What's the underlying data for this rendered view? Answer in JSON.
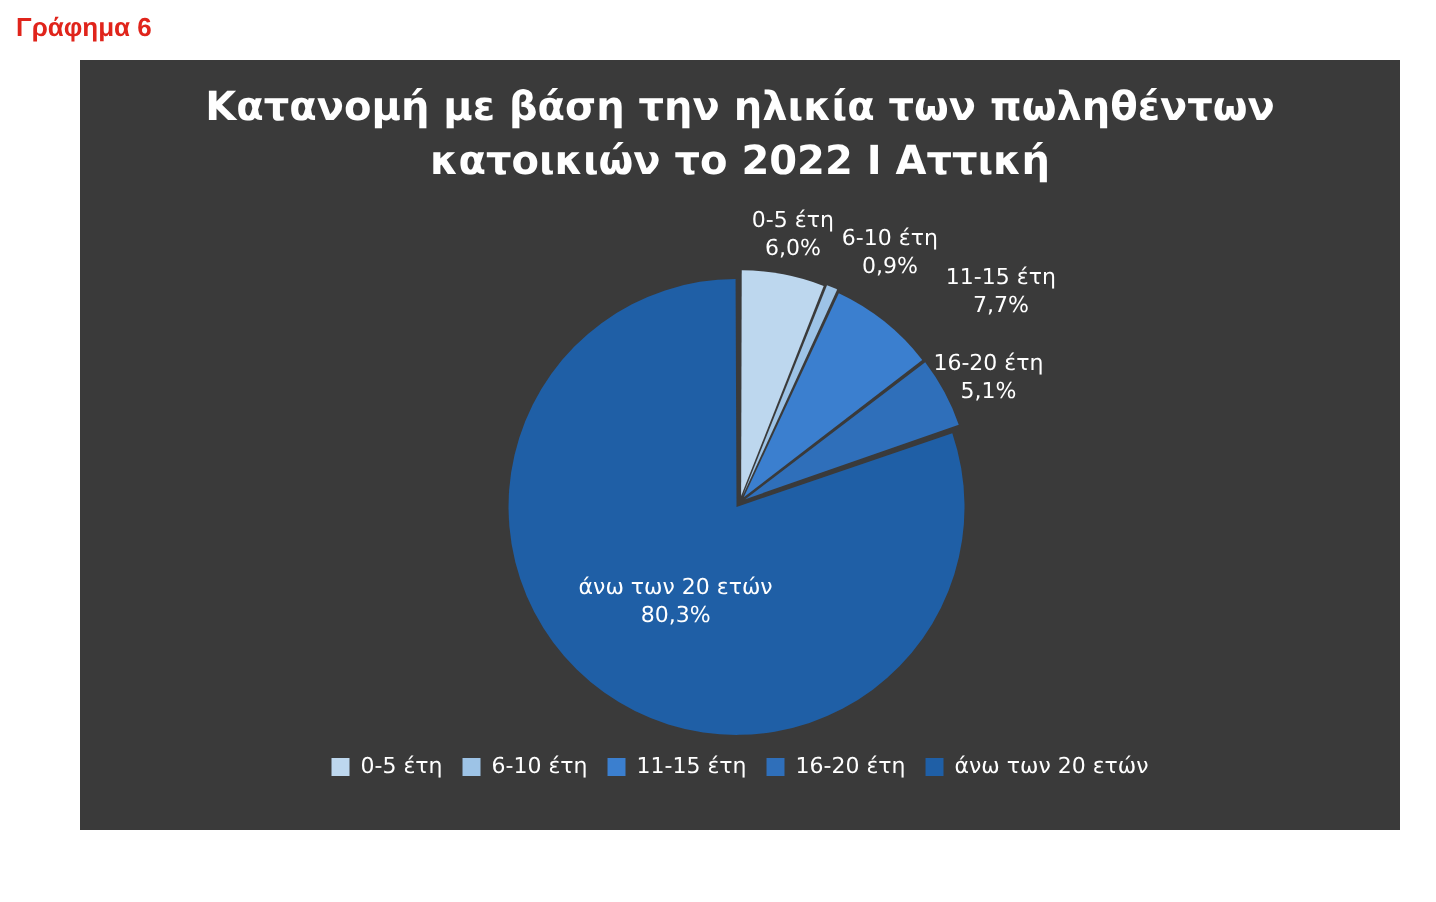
{
  "chart_data": {
    "type": "pie",
    "title": "Κατανομή με βάση την ηλικία των πωληθέντων κατοικιών το 2022 I Αττική",
    "annotations": [
      "Γράφημα 6"
    ],
    "categories": [
      "0-5 έτη",
      "6-10 έτη",
      "11-15 έτη",
      "16-20 έτη",
      "άνω των 20 ετών"
    ],
    "values": [
      6.0,
      0.9,
      7.7,
      5.1,
      80.3
    ],
    "value_labels": [
      "6,0%",
      "0,9%",
      "7,7%",
      "5,1%",
      "80,3%"
    ],
    "colors": [
      "#bdd7ee",
      "#9dc3e6",
      "#3b7fcf",
      "#2f6fba",
      "#1f5fa6"
    ],
    "legend": "bottom"
  }
}
